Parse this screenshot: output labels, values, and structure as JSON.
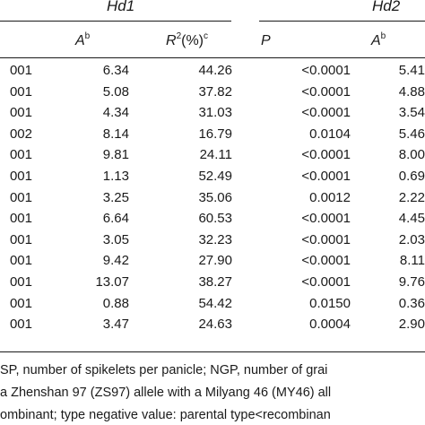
{
  "groups": {
    "hd1": "Hd1",
    "hd2": "Hd2"
  },
  "columns": {
    "hd1_a": {
      "base": "A",
      "sup": "b"
    },
    "hd1_r2": {
      "base": "R",
      "sup2": "2",
      "mid": "(%)",
      "sup": "c"
    },
    "hd2_p": "P",
    "hd2_a": {
      "base": "A",
      "sup": "b"
    }
  },
  "rows": [
    [
      "001",
      "6.34",
      "44.26",
      "<0.0001",
      "5.41"
    ],
    [
      "001",
      "5.08",
      "37.82",
      "<0.0001",
      "4.88"
    ],
    [
      "001",
      "4.34",
      "31.03",
      "<0.0001",
      "3.54"
    ],
    [
      "002",
      "8.14",
      "16.79",
      "0.0104",
      "5.46"
    ],
    [
      "001",
      "9.81",
      "24.11",
      "<0.0001",
      "8.00"
    ],
    [
      "001",
      "1.13",
      "52.49",
      "<0.0001",
      "0.69"
    ],
    [
      "001",
      "3.25",
      "35.06",
      "0.0012",
      "2.22"
    ],
    [
      "001",
      "6.64",
      "60.53",
      "<0.0001",
      "4.45"
    ],
    [
      "001",
      "3.05",
      "32.23",
      "<0.0001",
      "2.03"
    ],
    [
      "001",
      "9.42",
      "27.90",
      "<0.0001",
      "8.11"
    ],
    [
      "001",
      "13.07",
      "38.27",
      "<0.0001",
      "9.76"
    ],
    [
      "001",
      "0.88",
      "54.42",
      "0.0150",
      "0.36"
    ],
    [
      "001",
      "3.47",
      "24.63",
      "0.0004",
      "2.90"
    ]
  ],
  "footnotes": [
    "SP, number of spikelets per panicle; NGP, number of grai",
    "a Zhenshan 97 (ZS97) allele with a Milyang 46 (MY46) all",
    "ombinant; type negative value: parental type<recombinan"
  ]
}
